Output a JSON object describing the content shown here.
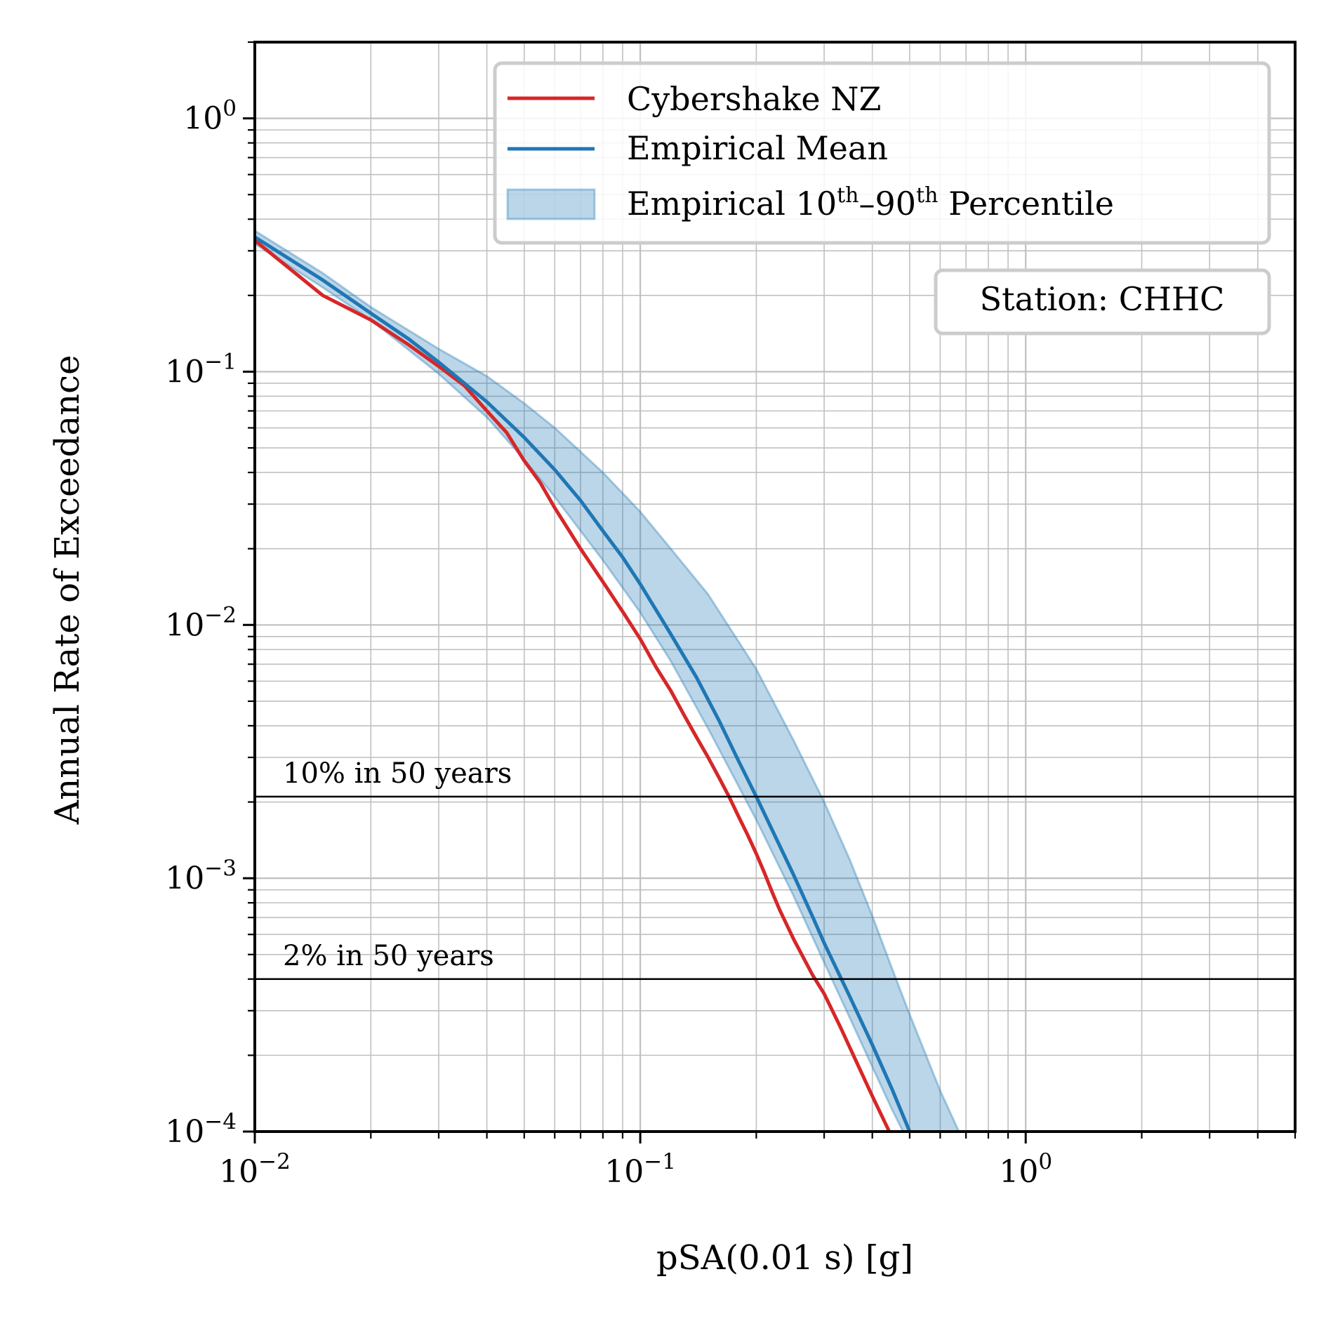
{
  "chart_data": {
    "type": "line",
    "x_scale": "log",
    "y_scale": "log",
    "xlabel": "pSA(0.01 s) [g]",
    "ylabel": "Annual Rate of Exceedance",
    "xlim": [
      0.01,
      5.0
    ],
    "ylim": [
      0.0001,
      2.0
    ],
    "grid": true,
    "grid_minor": true,
    "legend_position": "top-right",
    "x_ticks": [
      {
        "value": 0.01,
        "base": "10",
        "exp": "−2"
      },
      {
        "value": 0.1,
        "base": "10",
        "exp": "−1"
      },
      {
        "value": 1.0,
        "base": "10",
        "exp": "0"
      }
    ],
    "y_ticks": [
      {
        "value": 1.0,
        "base": "10",
        "exp": "0"
      },
      {
        "value": 0.1,
        "base": "10",
        "exp": "−1"
      },
      {
        "value": 0.01,
        "base": "10",
        "exp": "−2"
      },
      {
        "value": 0.001,
        "base": "10",
        "exp": "−3"
      },
      {
        "value": 0.0001,
        "base": "10",
        "exp": "−4"
      }
    ],
    "series": [
      {
        "name": "Cybershake NZ",
        "color": "#d62728",
        "kind": "line",
        "x": [
          0.01,
          0.015,
          0.02,
          0.025,
          0.03,
          0.035,
          0.04,
          0.045,
          0.05,
          0.055,
          0.06,
          0.07,
          0.08,
          0.09,
          0.1,
          0.11,
          0.12,
          0.13,
          0.14,
          0.15,
          0.16,
          0.17,
          0.18,
          0.19,
          0.2,
          0.21,
          0.22,
          0.23,
          0.25,
          0.28,
          0.3,
          0.33,
          0.36,
          0.4,
          0.44,
          0.46
        ],
        "y": [
          0.33,
          0.2,
          0.16,
          0.128,
          0.105,
          0.088,
          0.07,
          0.0575,
          0.0445,
          0.0365,
          0.029,
          0.02,
          0.0148,
          0.0113,
          0.0088,
          0.0068,
          0.0055,
          0.0044,
          0.0036,
          0.003,
          0.0025,
          0.0021,
          0.00175,
          0.00148,
          0.00125,
          0.00105,
          0.00088,
          0.00075,
          0.000575,
          0.000415,
          0.00035,
          0.00026,
          0.000195,
          0.000138,
          0.000102,
          8.85e-05
        ]
      },
      {
        "name": "Empirical Mean",
        "color": "#1f77b4",
        "kind": "line",
        "x": [
          0.01,
          0.015,
          0.02,
          0.025,
          0.03,
          0.035,
          0.04,
          0.05,
          0.06,
          0.07,
          0.08,
          0.09,
          0.1,
          0.12,
          0.14,
          0.16,
          0.18,
          0.2,
          0.22,
          0.25,
          0.28,
          0.3,
          0.35,
          0.4,
          0.45,
          0.5
        ],
        "y": [
          0.34,
          0.23,
          0.17,
          0.135,
          0.109,
          0.09,
          0.076,
          0.055,
          0.041,
          0.031,
          0.0235,
          0.0185,
          0.0145,
          0.0092,
          0.0062,
          0.0042,
          0.0029,
          0.0021,
          0.00155,
          0.00103,
          0.000705,
          0.000555,
          0.00034,
          0.00022,
          0.000147,
          0.0001
        ]
      },
      {
        "name": "Empirical 10th–90th Percentile",
        "color": "#1f77b4",
        "kind": "band",
        "x": [
          0.01,
          0.015,
          0.02,
          0.03,
          0.04,
          0.05,
          0.06,
          0.08,
          0.1,
          0.12,
          0.15,
          0.2,
          0.25,
          0.3,
          0.35,
          0.4,
          0.45,
          0.5,
          0.6,
          0.7
        ],
        "lower": [
          0.32,
          0.215,
          0.16,
          0.098,
          0.066,
          0.045,
          0.032,
          0.018,
          0.0112,
          0.0072,
          0.0039,
          0.0017,
          0.00085,
          0.000465,
          0.00028,
          0.00018,
          0.000122,
          8.85e-05,
          5e-05,
          3e-05
        ],
        "upper": [
          0.36,
          0.245,
          0.18,
          0.123,
          0.096,
          0.075,
          0.06,
          0.04,
          0.028,
          0.02,
          0.0132,
          0.0067,
          0.0035,
          0.002,
          0.00118,
          0.00071,
          0.00044,
          0.00029,
          0.000145,
          8.7e-05
        ]
      }
    ],
    "reference_lines": [
      {
        "label": "10% in 50 years",
        "y": 0.0021
      },
      {
        "label": "2% in 50 years",
        "y": 0.0004
      }
    ],
    "legend": {
      "entries": [
        {
          "text": "Cybershake NZ",
          "color": "#d62728",
          "kind": "line"
        },
        {
          "text": "Empirical Mean",
          "color": "#1f77b4",
          "kind": "line"
        },
        {
          "text_pre": "Empirical 10",
          "sup1": "th",
          "text_mid": "–90",
          "sup2": "th",
          "text_post": " Percentile",
          "color": "#1f77b4",
          "kind": "patch"
        }
      ]
    },
    "annotation": "Station: CHHC"
  }
}
